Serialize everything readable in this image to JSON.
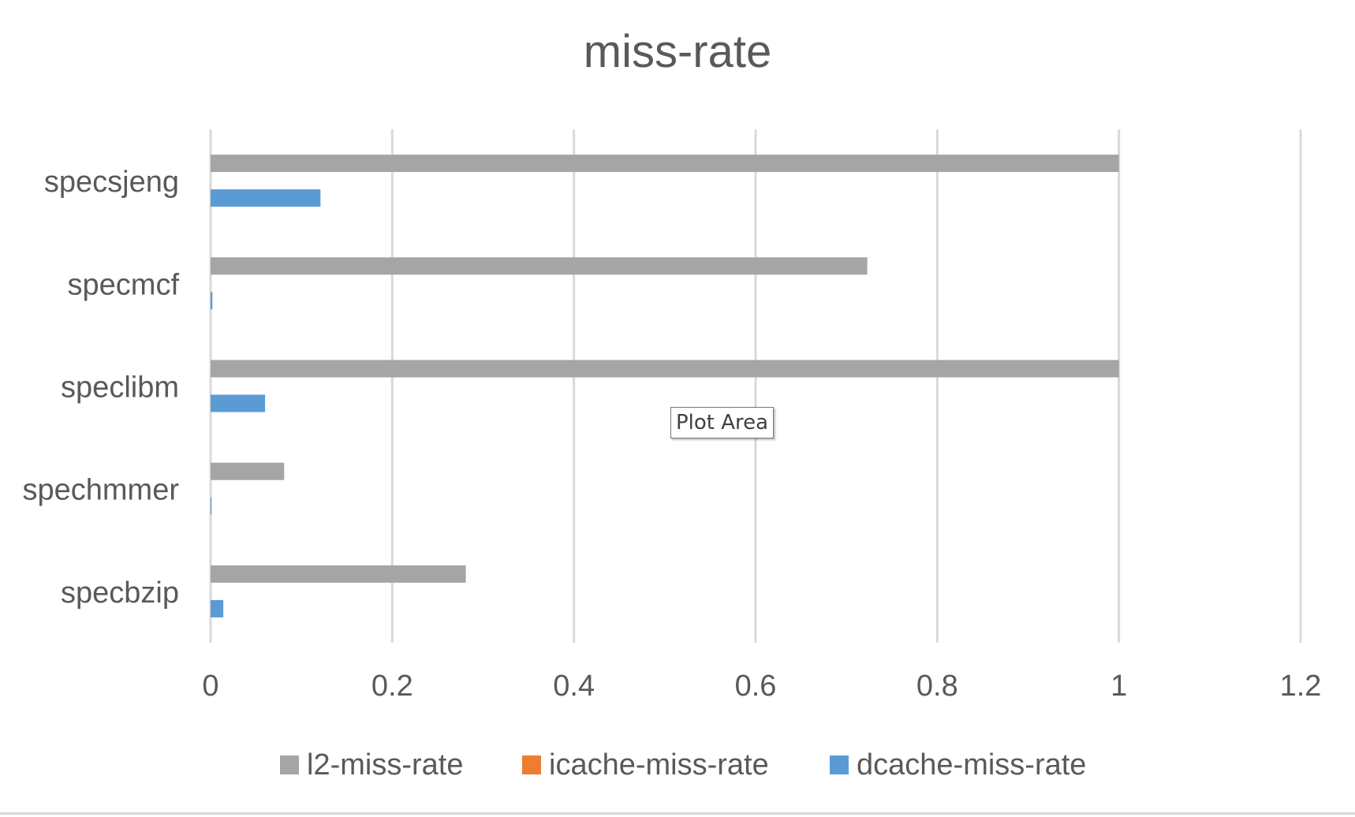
{
  "chart_data": {
    "type": "bar",
    "orientation": "horizontal",
    "title": "miss-rate",
    "categories": [
      "specsjeng",
      "specmcf",
      "speclibm",
      "spechmmer",
      "specbzip"
    ],
    "series": [
      {
        "name": "l2-miss-rate",
        "color": "#a5a5a5",
        "values": [
          1.0,
          0.723,
          1.0,
          0.081,
          0.281
        ]
      },
      {
        "name": "icache-miss-rate",
        "color": "#ed7d31",
        "values": [
          0.0,
          0.0,
          0.0,
          0.0,
          0.0
        ]
      },
      {
        "name": "dcache-miss-rate",
        "color": "#5b9bd5",
        "values": [
          0.121,
          0.002,
          0.06,
          0.001,
          0.014
        ]
      }
    ],
    "xlim": [
      0,
      1.2
    ],
    "xticks": [
      "0",
      "0.2",
      "0.4",
      "0.6",
      "0.8",
      "1",
      "1.2"
    ],
    "grid": true,
    "legend_position": "bottom"
  },
  "tooltip": "Plot Area"
}
